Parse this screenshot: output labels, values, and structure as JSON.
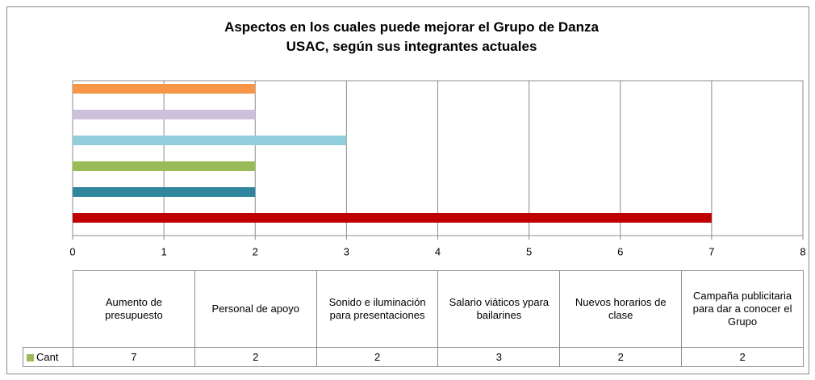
{
  "chart_data": {
    "type": "bar",
    "orientation": "horizontal",
    "title": "Aspectos en los cuales puede mejorar el Grupo de Danza USAC, según sus integrantes actuales",
    "categories": [
      "Aumento de presupuesto",
      "Personal de apoyo",
      "Sonido e iluminación para presentaciones",
      "Salario viáticos ypara bailarines",
      "Nuevos horarios de clase",
      "Campaña publicitaria para dar a conocer  el Grupo"
    ],
    "series": [
      {
        "name": "Cant",
        "color": "#9bbb59",
        "values": [
          7,
          2,
          2,
          3,
          2,
          2
        ],
        "colors": [
          "#c00000",
          "#31859c",
          "#9bbb59",
          "#92cddc",
          "#ccc0da",
          "#f79646"
        ]
      }
    ],
    "xlim": [
      0,
      8
    ],
    "xticks": [
      0,
      1,
      2,
      3,
      4,
      5,
      6,
      7,
      8
    ],
    "grid": true,
    "data_table": true
  }
}
